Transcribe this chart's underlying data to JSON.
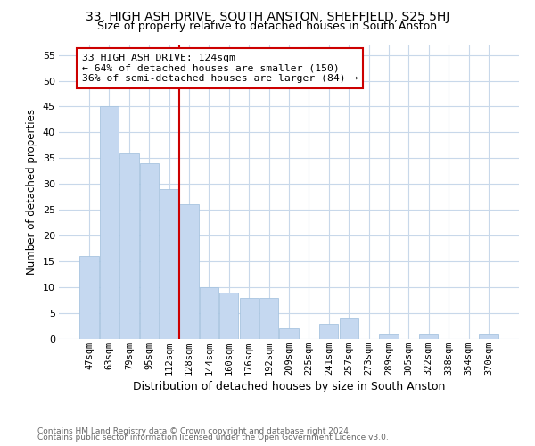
{
  "title": "33, HIGH ASH DRIVE, SOUTH ANSTON, SHEFFIELD, S25 5HJ",
  "subtitle": "Size of property relative to detached houses in South Anston",
  "xlabel": "Distribution of detached houses by size in South Anston",
  "ylabel": "Number of detached properties",
  "footer_line1": "Contains HM Land Registry data © Crown copyright and database right 2024.",
  "footer_line2": "Contains public sector information licensed under the Open Government Licence v3.0.",
  "annotation_line1": "33 HIGH ASH DRIVE: 124sqm",
  "annotation_line2": "← 64% of detached houses are smaller (150)",
  "annotation_line3": "36% of semi-detached houses are larger (84) →",
  "bar_labels": [
    "47sqm",
    "63sqm",
    "79sqm",
    "95sqm",
    "112sqm",
    "128sqm",
    "144sqm",
    "160sqm",
    "176sqm",
    "192sqm",
    "209sqm",
    "225sqm",
    "241sqm",
    "257sqm",
    "273sqm",
    "289sqm",
    "305sqm",
    "322sqm",
    "338sqm",
    "354sqm",
    "370sqm"
  ],
  "bar_values": [
    16,
    45,
    36,
    34,
    29,
    26,
    10,
    9,
    8,
    8,
    2,
    0,
    3,
    4,
    0,
    1,
    0,
    1,
    0,
    0,
    1
  ],
  "bar_color": "#c5d8f0",
  "bar_edge_color": "#a8c4e0",
  "vline_index": 5,
  "vline_color": "#cc0000",
  "ylim_max": 57,
  "yticks": [
    0,
    5,
    10,
    15,
    20,
    25,
    30,
    35,
    40,
    45,
    50,
    55
  ],
  "background_color": "#ffffff",
  "grid_color": "#c8d8ea",
  "annotation_box_edge": "#cc0000",
  "title_fontsize": 10,
  "subtitle_fontsize": 9
}
